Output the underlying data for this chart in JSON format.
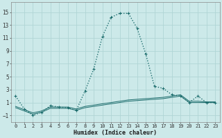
{
  "title": "",
  "xlabel": "Humidex (Indice chaleur)",
  "ylabel": "",
  "background_color": "#cce9e9",
  "grid_color": "#b0d8d8",
  "line_color": "#1a6b6b",
  "x_ticks": [
    0,
    1,
    2,
    3,
    4,
    5,
    6,
    7,
    8,
    9,
    10,
    11,
    12,
    13,
    14,
    15,
    16,
    17,
    18,
    19,
    20,
    21,
    22,
    23
  ],
  "y_ticks": [
    -1,
    1,
    3,
    5,
    7,
    9,
    11,
    13,
    15
  ],
  "xlim": [
    -0.5,
    23.5
  ],
  "ylim": [
    -2.0,
    16.5
  ],
  "series": [
    {
      "x": [
        0,
        1,
        2,
        3,
        4,
        5,
        6,
        7,
        8,
        9,
        10,
        11,
        12,
        13,
        14,
        15,
        16,
        17,
        18,
        19,
        20,
        21,
        22,
        23
      ],
      "y": [
        2,
        0,
        -1,
        -0.5,
        0.5,
        0.3,
        0.2,
        -0.2,
        2.8,
        6.2,
        11.2,
        14.2,
        14.8,
        14.8,
        12.5,
        8.5,
        3.5,
        3.2,
        2.2,
        2.0,
        1.0,
        2.0,
        1.0,
        1.0
      ],
      "color": "#1a6b6b",
      "linewidth": 1.0,
      "marker": "+",
      "markersize": 3.0,
      "linestyle": "dotted"
    },
    {
      "x": [
        0,
        1,
        2,
        3,
        4,
        5,
        6,
        7,
        8,
        9,
        10,
        11,
        12,
        13,
        14,
        15,
        16,
        17,
        18,
        19,
        20,
        21,
        22,
        23
      ],
      "y": [
        0.2,
        -0.3,
        -0.8,
        -0.5,
        0.1,
        0.1,
        0.1,
        -0.2,
        0.2,
        0.4,
        0.6,
        0.8,
        1.0,
        1.2,
        1.3,
        1.4,
        1.5,
        1.6,
        1.8,
        2.0,
        1.0,
        1.0,
        1.0,
        1.0
      ],
      "color": "#1a6b6b",
      "linewidth": 0.7,
      "marker": null,
      "markersize": 0,
      "linestyle": "solid"
    },
    {
      "x": [
        0,
        1,
        2,
        3,
        4,
        5,
        6,
        7,
        8,
        9,
        10,
        11,
        12,
        13,
        14,
        15,
        16,
        17,
        18,
        19,
        20,
        21,
        22,
        23
      ],
      "y": [
        0.4,
        -0.1,
        -0.6,
        -0.3,
        0.3,
        0.3,
        0.3,
        0.0,
        0.4,
        0.6,
        0.8,
        1.0,
        1.2,
        1.4,
        1.5,
        1.6,
        1.7,
        1.8,
        2.0,
        2.2,
        1.2,
        1.2,
        1.1,
        1.1
      ],
      "color": "#1a6b6b",
      "linewidth": 0.7,
      "marker": null,
      "markersize": 0,
      "linestyle": "solid"
    }
  ]
}
